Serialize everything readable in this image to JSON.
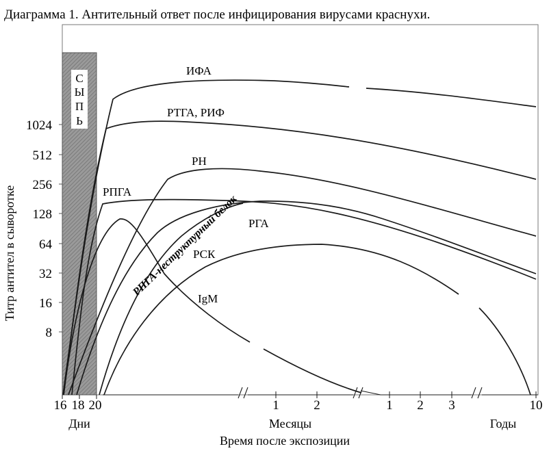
{
  "chart_data": {
    "type": "line",
    "title": "Диаграмма 1. Антительный ответ после инфицирования вирусами краснухи.",
    "ylabel": "Титр антител в сыворотке",
    "xlabel": "Время после экспозиции",
    "y_scale": "log2",
    "y_ticks": [
      "1024",
      "512",
      "256",
      "128",
      "64",
      "32",
      "16",
      "8"
    ],
    "x_groups": [
      {
        "name": "Дни",
        "ticks": [
          "16",
          "18",
          "20"
        ]
      },
      {
        "name": "Месяцы",
        "ticks": [
          "1",
          "2"
        ]
      },
      {
        "name": "Годы",
        "ticks": [
          "1",
          "2",
          "3",
          "10"
        ]
      }
    ],
    "rash_label": [
      "С",
      "Ы",
      "П",
      "Ь"
    ],
    "series": [
      {
        "name": "ИФА",
        "peak_titer": 2600
      },
      {
        "name": "РТГА, РИФ",
        "peak_titer": 1100
      },
      {
        "name": "РН",
        "peak_titer": 350
      },
      {
        "name": "РПГА",
        "peak_titer": 175
      },
      {
        "name": "РГА",
        "peak_titer": 170
      },
      {
        "name": "РПГА-неструктурный белок",
        "peak_titer": 170
      },
      {
        "name": "РСК",
        "peak_titer": 62
      },
      {
        "name": "IgM",
        "peak_titer": 115
      }
    ]
  }
}
